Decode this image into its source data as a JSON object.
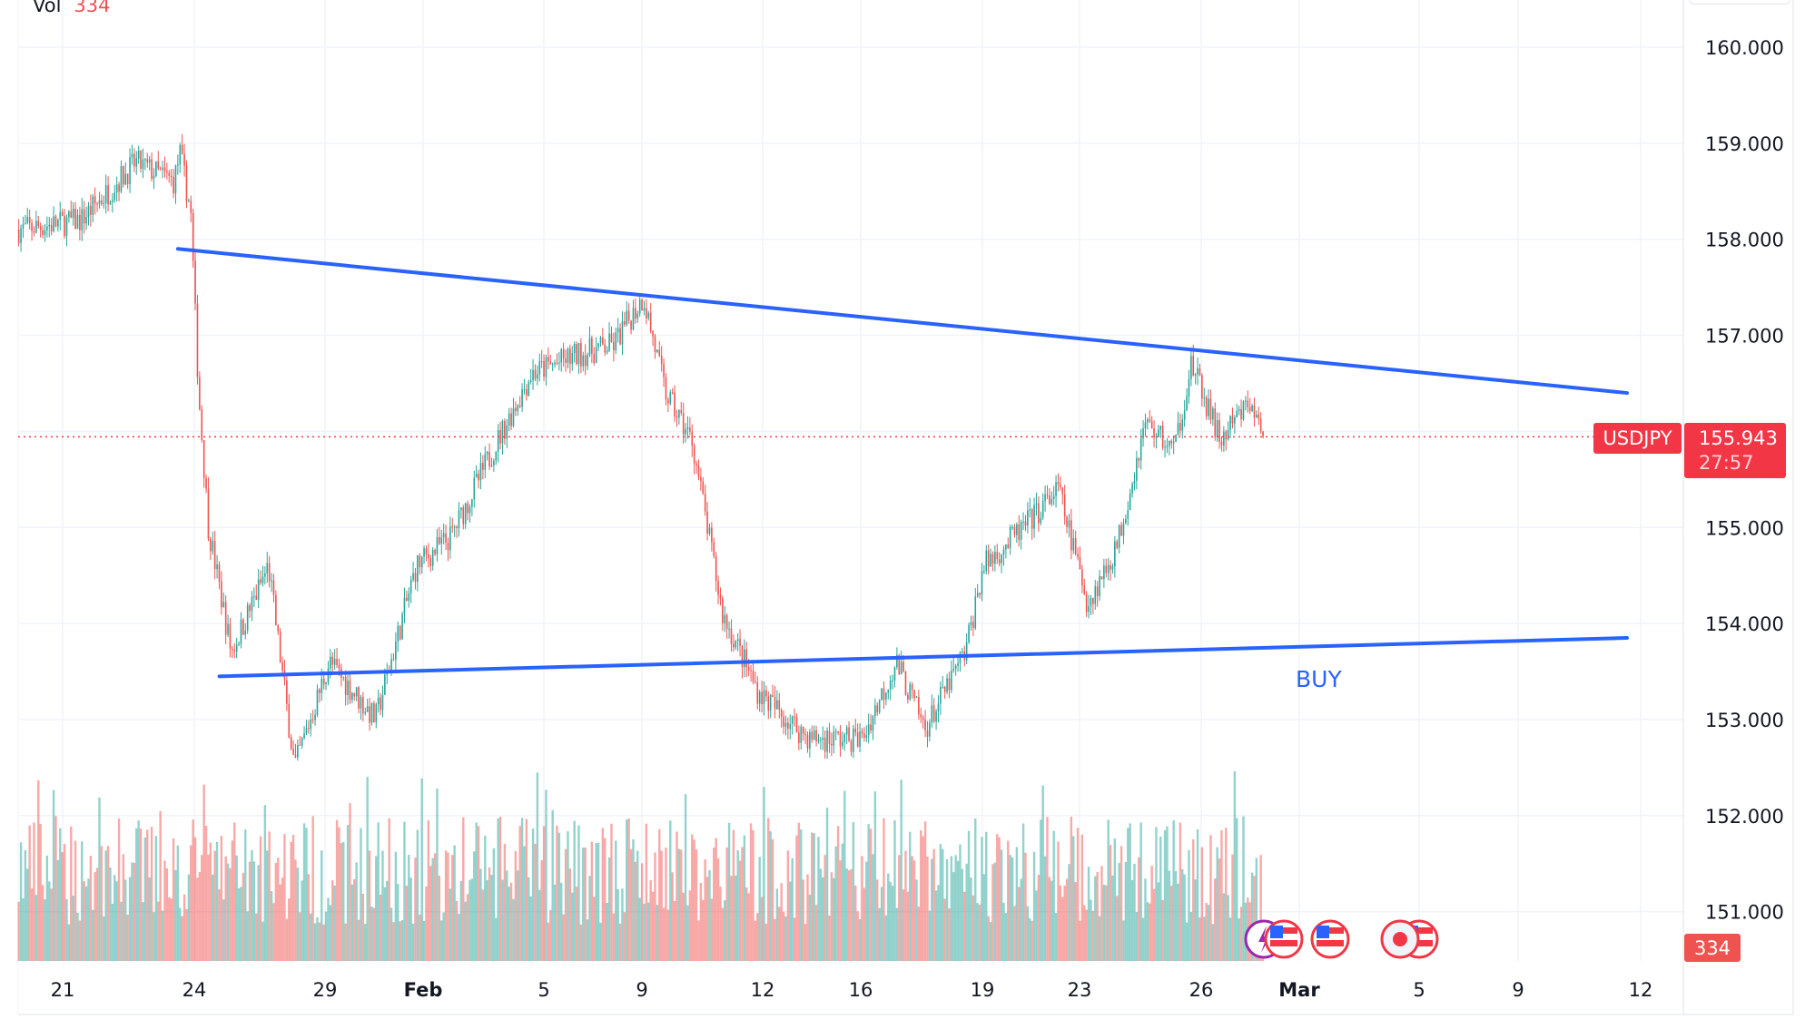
{
  "legend": {
    "label": "Vol",
    "value": "334"
  },
  "symbol": "USDJPY",
  "last_price": "155.943",
  "countdown": "27:57",
  "volume_value": "334",
  "annotation": "BUY",
  "colors": {
    "up": "#26a69a",
    "down": "#ef5350",
    "trendline": "#2962ff",
    "price_line": "#f23645"
  },
  "chart_data": {
    "type": "candlestick",
    "title": "",
    "ylim": [
      150.4,
      160.5
    ],
    "y_ticks": [
      "160.000",
      "159.000",
      "158.000",
      "157.000",
      "156.000",
      "155.000",
      "154.000",
      "153.000",
      "152.000",
      "151.000"
    ],
    "x_ticks": [
      {
        "label": "21",
        "date": "01-21"
      },
      {
        "label": "24",
        "date": "01-24"
      },
      {
        "label": "29",
        "date": "01-29"
      },
      {
        "label": "Feb",
        "date": "02-01"
      },
      {
        "label": "5",
        "date": "02-05"
      },
      {
        "label": "9",
        "date": "02-09"
      },
      {
        "label": "12",
        "date": "02-12"
      },
      {
        "label": "16",
        "date": "02-16"
      },
      {
        "label": "19",
        "date": "02-19"
      },
      {
        "label": "23",
        "date": "02-23"
      },
      {
        "label": "26",
        "date": "02-26"
      },
      {
        "label": "Mar",
        "date": "03-01"
      },
      {
        "label": "5",
        "date": "03-05"
      },
      {
        "label": "9",
        "date": "03-09"
      },
      {
        "label": "12",
        "date": "03-12"
      }
    ],
    "price_path": [
      [
        "01-20 00",
        158.1
      ],
      [
        "01-21 10",
        158.2
      ],
      [
        "01-22 16",
        158.8
      ],
      [
        "01-23 13",
        158.6
      ],
      [
        "01-23 16",
        158.9
      ],
      [
        "01-23 22",
        158.3
      ],
      [
        "01-24 04",
        156.4
      ],
      [
        "01-24 13",
        155.0
      ],
      [
        "01-25 10",
        153.7
      ],
      [
        "01-26 20",
        154.6
      ],
      [
        "01-27 20",
        152.5
      ],
      [
        "01-29 03",
        153.6
      ],
      [
        "01-30 13",
        153.0
      ],
      [
        "01-31 19",
        154.6
      ],
      [
        "02-01 22",
        154.9
      ],
      [
        "02-03 11",
        155.9
      ],
      [
        "02-04 14",
        156.6
      ],
      [
        "02-06 10",
        156.8
      ],
      [
        "02-07 20",
        156.9
      ],
      [
        "02-09 01",
        157.4
      ],
      [
        "02-09 14",
        156.4
      ],
      [
        "02-10 06",
        155.9
      ],
      [
        "02-11 00",
        154.1
      ],
      [
        "02-11 21",
        153.3
      ],
      [
        "02-13 00",
        153.0
      ],
      [
        "02-13 22",
        152.8
      ],
      [
        "02-16 01",
        152.8
      ],
      [
        "02-16 21",
        153.6
      ],
      [
        "02-17 14",
        152.9
      ],
      [
        "02-18 14",
        153.7
      ],
      [
        "02-19 01",
        154.6
      ],
      [
        "02-20 17",
        155.0
      ],
      [
        "02-22 03",
        155.4
      ],
      [
        "02-23 05",
        154.2
      ],
      [
        "02-23 22",
        154.8
      ],
      [
        "02-24 15",
        156.1
      ],
      [
        "02-25 08",
        155.8
      ],
      [
        "02-25 18",
        156.7
      ],
      [
        "02-26 19",
        155.9
      ],
      [
        "02-27 23",
        156.3
      ],
      [
        "02-28 13",
        155.943
      ]
    ],
    "trendlines": [
      {
        "from": [
          "01-23 15",
          157.9
        ],
        "to": [
          "03-11 16",
          156.4
        ]
      },
      {
        "from": [
          "01-24 23",
          153.45
        ],
        "to": [
          "03-11 16",
          153.85
        ]
      }
    ],
    "last_price": 155.943,
    "volume_last": 334
  }
}
